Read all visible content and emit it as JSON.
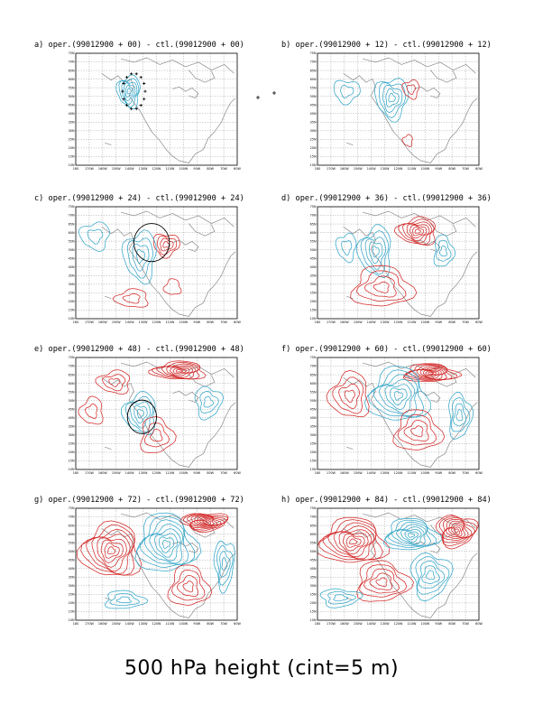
{
  "figure": {
    "main_title": "500 hPa height (cint=5 m)",
    "colors": {
      "positive": "#d42a2a",
      "negative": "#35a7c9",
      "coast": "#8a8a8a"
    },
    "lon_ticks": [
      "180",
      "170W",
      "160W",
      "150W",
      "140W",
      "130W",
      "120W",
      "110W",
      "100W",
      "90W",
      "80W",
      "70W",
      "60W"
    ],
    "lat_ticks": [
      "75N",
      "70N",
      "65N",
      "60N",
      "55N",
      "50N",
      "45N",
      "40N",
      "35N",
      "30N",
      "25N",
      "20N",
      "15N",
      "10N"
    ],
    "panels": [
      {
        "id": "a",
        "title": "a) oper.(99012900 + 00) - ctl.(99012900 + 00)",
        "lead": 0
      },
      {
        "id": "b",
        "title": "b) oper.(99012900 + 12) - ctl.(99012900 + 12)",
        "lead": 12
      },
      {
        "id": "c",
        "title": "c) oper.(99012900 + 24) - ctl.(99012900 + 24)",
        "lead": 24
      },
      {
        "id": "d",
        "title": "d) oper.(99012900 + 36) - ctl.(99012900 + 36)",
        "lead": 36
      },
      {
        "id": "e",
        "title": "e) oper.(99012900 + 48) - ctl.(99012900 + 48)",
        "lead": 48
      },
      {
        "id": "f",
        "title": "f) oper.(99012900 + 60) - ctl.(99012900 + 60)",
        "lead": 60
      },
      {
        "id": "g",
        "title": "g) oper.(99012900 + 72) - ctl.(99012900 + 72)",
        "lead": 72
      },
      {
        "id": "h",
        "title": "h) oper.(99012900 + 84) - ctl.(99012900 + 84)",
        "lead": 84
      }
    ]
  }
}
